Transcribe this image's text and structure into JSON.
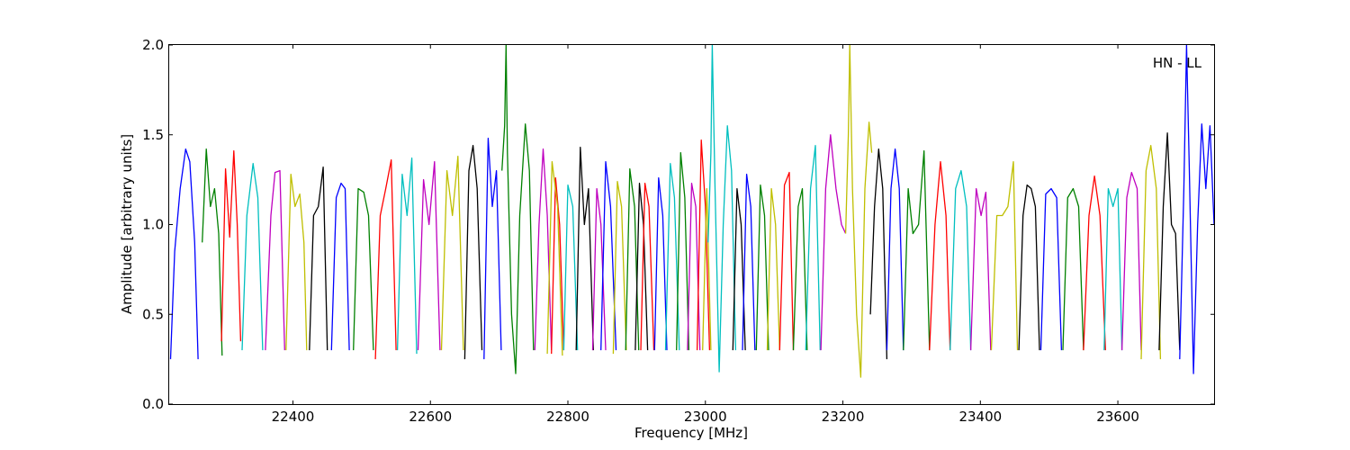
{
  "chart_data": {
    "type": "line",
    "xlabel": "Frequency [MHz]",
    "ylabel": "Amplitude [arbitrary units]",
    "annotation": "HN - LL",
    "xlim": [
      22220,
      23740
    ],
    "ylim": [
      0.0,
      2.0
    ],
    "xticks": [
      22400,
      22600,
      22800,
      23000,
      23200,
      23400,
      23600
    ],
    "yticks": [
      0.0,
      0.5,
      1.0,
      1.5,
      2.0
    ],
    "xtick_labels": [
      "22400",
      "22600",
      "22800",
      "23000",
      "23200",
      "23400",
      "23600"
    ],
    "ytick_labels": [
      "0.0",
      "0.5",
      "1.0",
      "1.5",
      "2.0"
    ],
    "grid": false,
    "color_cycle": [
      "#0000ff",
      "#008000",
      "#ff0000",
      "#00bfbf",
      "#bf00bf",
      "#bfbf00",
      "#000000"
    ],
    "segments": [
      {
        "color": "#0000ff",
        "x": [
          22222,
          22228,
          22236,
          22244,
          22250,
          22257,
          22262
        ],
        "y": [
          0.25,
          0.85,
          1.2,
          1.42,
          1.35,
          0.9,
          0.25
        ]
      },
      {
        "color": "#008000",
        "x": [
          22268,
          22274,
          22280,
          22286,
          22292,
          22297
        ],
        "y": [
          0.9,
          1.42,
          1.1,
          1.2,
          0.95,
          0.27
        ]
      },
      {
        "color": "#ff0000",
        "x": [
          22296,
          22302,
          22308,
          22314,
          22319,
          22324
        ],
        "y": [
          0.35,
          1.31,
          0.93,
          1.41,
          1.0,
          0.35
        ]
      },
      {
        "color": "#00bfbf",
        "x": [
          22326,
          22333,
          22342,
          22349,
          22356
        ],
        "y": [
          0.3,
          1.05,
          1.34,
          1.15,
          0.3
        ]
      },
      {
        "color": "#bf00bf",
        "x": [
          22360,
          22368,
          22374,
          22381,
          22388
        ],
        "y": [
          0.3,
          1.05,
          1.29,
          1.3,
          0.3
        ]
      },
      {
        "color": "#bfbf00",
        "x": [
          22390,
          22397,
          22403,
          22410,
          22416,
          22420
        ],
        "y": [
          0.3,
          1.28,
          1.1,
          1.17,
          0.9,
          0.3
        ]
      },
      {
        "color": "#000000",
        "x": [
          22424,
          22430,
          22437,
          22444,
          22450
        ],
        "y": [
          0.3,
          1.05,
          1.1,
          1.32,
          0.3
        ]
      },
      {
        "color": "#0000ff",
        "x": [
          22456,
          22463,
          22470,
          22476,
          22482
        ],
        "y": [
          0.3,
          1.15,
          1.23,
          1.2,
          0.3
        ]
      },
      {
        "color": "#008000",
        "x": [
          22488,
          22495,
          22503,
          22510,
          22517
        ],
        "y": [
          0.3,
          1.2,
          1.18,
          1.05,
          0.3
        ]
      },
      {
        "color": "#ff0000",
        "x": [
          22520,
          22527,
          22535,
          22543,
          22550
        ],
        "y": [
          0.25,
          1.05,
          1.2,
          1.36,
          0.3
        ]
      },
      {
        "color": "#00bfbf",
        "x": [
          22552,
          22559,
          22566,
          22573,
          22580
        ],
        "y": [
          0.3,
          1.28,
          1.05,
          1.37,
          0.28
        ]
      },
      {
        "color": "#bf00bf",
        "x": [
          22582,
          22590,
          22598,
          22606,
          22614
        ],
        "y": [
          0.3,
          1.25,
          1.0,
          1.35,
          0.3
        ]
      },
      {
        "color": "#bfbf00",
        "x": [
          22616,
          22624,
          22632,
          22640,
          22648
        ],
        "y": [
          0.3,
          1.3,
          1.05,
          1.38,
          0.3
        ]
      },
      {
        "color": "#000000",
        "x": [
          22650,
          22656,
          22662,
          22668,
          22675
        ],
        "y": [
          0.25,
          1.3,
          1.44,
          1.2,
          0.3
        ]
      },
      {
        "color": "#0000ff",
        "x": [
          22678,
          22684,
          22690,
          22696,
          22703
        ],
        "y": [
          0.25,
          1.48,
          1.1,
          1.3,
          0.3
        ]
      },
      {
        "color": "#008000",
        "x": [
          22704,
          22708,
          22710,
          22712,
          22718,
          22724,
          22730,
          22738,
          22744,
          22750
        ],
        "y": [
          1.3,
          1.55,
          2.0,
          1.4,
          0.5,
          0.17,
          1.05,
          1.56,
          1.3,
          0.3
        ]
      },
      {
        "color": "#bf00bf",
        "x": [
          22752,
          22758,
          22764,
          22770,
          22776
        ],
        "y": [
          0.3,
          1.0,
          1.42,
          1.05,
          0.3
        ]
      },
      {
        "color": "#ff0000",
        "x": [
          22776,
          22782,
          22788,
          22794
        ],
        "y": [
          0.28,
          1.26,
          1.0,
          0.3
        ]
      },
      {
        "color": "#bfbf00",
        "x": [
          22770,
          22777,
          22785,
          22792
        ],
        "y": [
          0.28,
          1.35,
          1.1,
          0.27
        ]
      },
      {
        "color": "#00bfbf",
        "x": [
          22794,
          22800,
          22807,
          22814
        ],
        "y": [
          0.3,
          1.22,
          1.1,
          0.3
        ]
      },
      {
        "color": "#000000",
        "x": [
          22812,
          22818,
          22824,
          22830,
          22837
        ],
        "y": [
          0.3,
          1.43,
          1.0,
          1.2,
          0.3
        ]
      },
      {
        "color": "#bf00bf",
        "x": [
          22836,
          22842,
          22848,
          22855
        ],
        "y": [
          0.3,
          1.2,
          1.0,
          0.3
        ]
      },
      {
        "color": "#0000ff",
        "x": [
          22848,
          22855,
          22862,
          22870
        ],
        "y": [
          0.3,
          1.35,
          1.1,
          0.3
        ]
      },
      {
        "color": "#bfbf00",
        "x": [
          22866,
          22872,
          22878,
          22885
        ],
        "y": [
          0.28,
          1.24,
          1.1,
          0.3
        ]
      },
      {
        "color": "#008000",
        "x": [
          22884,
          22890,
          22897,
          22903
        ],
        "y": [
          0.3,
          1.31,
          1.1,
          0.3
        ]
      },
      {
        "color": "#000000",
        "x": [
          22898,
          22904,
          22910,
          22916
        ],
        "y": [
          0.3,
          1.23,
          1.0,
          0.3
        ]
      },
      {
        "color": "#ff0000",
        "x": [
          22906,
          22912,
          22918,
          22925
        ],
        "y": [
          0.3,
          1.23,
          1.1,
          0.3
        ]
      },
      {
        "color": "#0000ff",
        "x": [
          22926,
          22932,
          22938,
          22944
        ],
        "y": [
          0.3,
          1.26,
          1.05,
          0.3
        ]
      },
      {
        "color": "#00bfbf",
        "x": [
          22942,
          22949,
          22955,
          22962
        ],
        "y": [
          0.3,
          1.34,
          1.15,
          0.3
        ]
      },
      {
        "color": "#008000",
        "x": [
          22958,
          22964,
          22970,
          22976
        ],
        "y": [
          0.3,
          1.4,
          1.15,
          0.3
        ]
      },
      {
        "color": "#bf00bf",
        "x": [
          22974,
          22980,
          22986,
          22992
        ],
        "y": [
          0.3,
          1.23,
          1.1,
          0.3
        ]
      },
      {
        "color": "#ff0000",
        "x": [
          22988,
          22994,
          23000,
          23006
        ],
        "y": [
          0.3,
          1.47,
          1.1,
          0.3
        ]
      },
      {
        "color": "#bfbf00",
        "x": [
          22996,
          23002,
          23008
        ],
        "y": [
          0.3,
          1.2,
          0.3
        ]
      },
      {
        "color": "#00bfbf",
        "x": [
          23004,
          23008,
          23010,
          23014,
          23020,
          23026,
          23032,
          23038,
          23044
        ],
        "y": [
          0.9,
          1.4,
          2.0,
          1.2,
          0.18,
          1.0,
          1.55,
          1.3,
          0.3
        ]
      },
      {
        "color": "#000000",
        "x": [
          23040,
          23046,
          23052,
          23058
        ],
        "y": [
          0.3,
          1.2,
          1.0,
          0.3
        ]
      },
      {
        "color": "#0000ff",
        "x": [
          23054,
          23060,
          23066,
          23072
        ],
        "y": [
          0.3,
          1.28,
          1.1,
          0.3
        ]
      },
      {
        "color": "#008000",
        "x": [
          23074,
          23080,
          23086,
          23092
        ],
        "y": [
          0.3,
          1.22,
          1.05,
          0.3
        ]
      },
      {
        "color": "#bfbf00",
        "x": [
          23090,
          23096,
          23102,
          23108
        ],
        "y": [
          0.3,
          1.2,
          1.0,
          0.3
        ]
      },
      {
        "color": "#ff0000",
        "x": [
          23108,
          23115,
          23122,
          23128
        ],
        "y": [
          0.3,
          1.22,
          1.29,
          0.3
        ]
      },
      {
        "color": "#008000",
        "x": [
          23128,
          23135,
          23141,
          23148
        ],
        "y": [
          0.3,
          1.1,
          1.2,
          0.3
        ]
      },
      {
        "color": "#00bfbf",
        "x": [
          23146,
          23153,
          23160,
          23167
        ],
        "y": [
          0.3,
          1.2,
          1.44,
          0.3
        ]
      },
      {
        "color": "#bf00bf",
        "x": [
          23168,
          23175,
          23182,
          23190,
          23198,
          23204
        ],
        "y": [
          0.3,
          1.2,
          1.5,
          1.2,
          1.0,
          0.95
        ]
      },
      {
        "color": "#bfbf00",
        "x": [
          23204,
          23208,
          23210,
          23214,
          23220,
          23226,
          23232,
          23238,
          23242
        ],
        "y": [
          0.95,
          1.5,
          2.0,
          1.2,
          0.5,
          0.15,
          1.2,
          1.57,
          1.4
        ]
      },
      {
        "color": "#000000",
        "x": [
          23240,
          23246,
          23252,
          23258,
          23264
        ],
        "y": [
          0.5,
          1.1,
          1.42,
          1.2,
          0.25
        ]
      },
      {
        "color": "#0000ff",
        "x": [
          23264,
          23270,
          23276,
          23282,
          23288
        ],
        "y": [
          0.3,
          1.2,
          1.42,
          1.2,
          0.3
        ]
      },
      {
        "color": "#008000",
        "x": [
          23288,
          23295,
          23302,
          23310,
          23318,
          23326
        ],
        "y": [
          0.3,
          1.2,
          0.95,
          1.0,
          1.41,
          0.3
        ]
      },
      {
        "color": "#ff0000",
        "x": [
          23326,
          23334,
          23342,
          23350,
          23356
        ],
        "y": [
          0.3,
          1.0,
          1.35,
          1.05,
          0.3
        ]
      },
      {
        "color": "#00bfbf",
        "x": [
          23356,
          23364,
          23372,
          23380,
          23386
        ],
        "y": [
          0.3,
          1.2,
          1.3,
          1.1,
          0.3
        ]
      },
      {
        "color": "#bf00bf",
        "x": [
          23386,
          23394,
          23401,
          23408,
          23415
        ],
        "y": [
          0.3,
          1.2,
          1.05,
          1.18,
          0.3
        ]
      },
      {
        "color": "#bfbf00",
        "x": [
          23416,
          23424,
          23432,
          23440,
          23448,
          23454
        ],
        "y": [
          0.3,
          1.05,
          1.05,
          1.1,
          1.35,
          0.3
        ]
      },
      {
        "color": "#000000",
        "x": [
          23456,
          23462,
          23468,
          23474,
          23480,
          23486
        ],
        "y": [
          0.3,
          1.05,
          1.22,
          1.2,
          1.1,
          0.3
        ]
      },
      {
        "color": "#0000ff",
        "x": [
          23488,
          23495,
          23503,
          23511,
          23518
        ],
        "y": [
          0.3,
          1.17,
          1.2,
          1.15,
          0.3
        ]
      },
      {
        "color": "#008000",
        "x": [
          23520,
          23527,
          23535,
          23543,
          23550
        ],
        "y": [
          0.3,
          1.15,
          1.2,
          1.1,
          0.3
        ]
      },
      {
        "color": "#ff0000",
        "x": [
          23550,
          23558,
          23566,
          23574,
          23582
        ],
        "y": [
          0.3,
          1.05,
          1.27,
          1.05,
          0.3
        ]
      },
      {
        "color": "#00bfbf",
        "x": [
          23580,
          23586,
          23593,
          23600,
          23606
        ],
        "y": [
          0.3,
          1.2,
          1.1,
          1.2,
          0.3
        ]
      },
      {
        "color": "#bf00bf",
        "x": [
          23606,
          23613,
          23620,
          23628,
          23634
        ],
        "y": [
          0.3,
          1.15,
          1.29,
          1.2,
          0.3
        ]
      },
      {
        "color": "#bfbf00",
        "x": [
          23634,
          23641,
          23648,
          23656,
          23662
        ],
        "y": [
          0.25,
          1.3,
          1.44,
          1.2,
          0.25
        ]
      },
      {
        "color": "#000000",
        "x": [
          23660,
          23666,
          23672,
          23678,
          23684,
          23690
        ],
        "y": [
          0.3,
          1.1,
          1.51,
          1.0,
          0.95,
          0.3
        ]
      },
      {
        "color": "#0000ff",
        "x": [
          23690,
          23696,
          23700,
          23704,
          23710,
          23716,
          23722,
          23728,
          23734,
          23740
        ],
        "y": [
          0.25,
          1.2,
          2.0,
          1.3,
          0.17,
          1.0,
          1.56,
          1.2,
          1.55,
          1.0
        ]
      }
    ]
  }
}
